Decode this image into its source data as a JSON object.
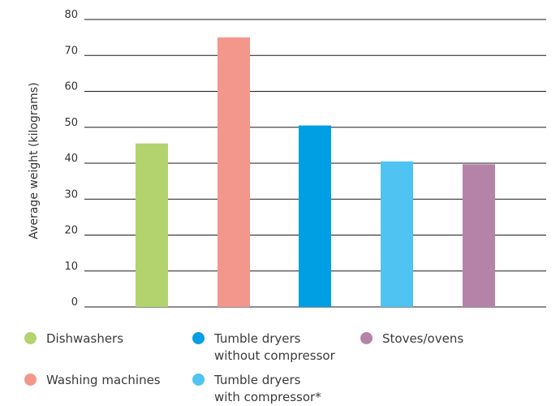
{
  "chart_data": {
    "type": "bar",
    "title": "",
    "xlabel": "",
    "ylabel": "Average weight (kilograms)",
    "ylim": [
      0,
      80
    ],
    "yticks": [
      0,
      10,
      20,
      30,
      40,
      50,
      60,
      70,
      80
    ],
    "grid": true,
    "legend_position": "bottom",
    "categories": [
      "Dishwashers",
      "Washing machines",
      "Tumble dryers without compressor",
      "Tumble dryers with compressor*",
      "Stoves/ovens"
    ],
    "values": [
      45.5,
      75,
      50.5,
      40.5,
      39.7
    ],
    "colors": [
      "#b3d36f",
      "#f3968c",
      "#009fe3",
      "#4fc3f2",
      "#b583a8"
    ]
  },
  "legend": [
    {
      "lines": [
        "Dishwashers"
      ],
      "color": "#b3d36f"
    },
    {
      "lines": [
        "Tumble dryers",
        "without compressor"
      ],
      "color": "#009fe3"
    },
    {
      "lines": [
        "Stoves/ovens"
      ],
      "color": "#b583a8"
    },
    {
      "lines": [
        "Washing machines"
      ],
      "color": "#f3968c"
    },
    {
      "lines": [
        "Tumble dryers",
        "with compressor*"
      ],
      "color": "#4fc3f2"
    }
  ]
}
